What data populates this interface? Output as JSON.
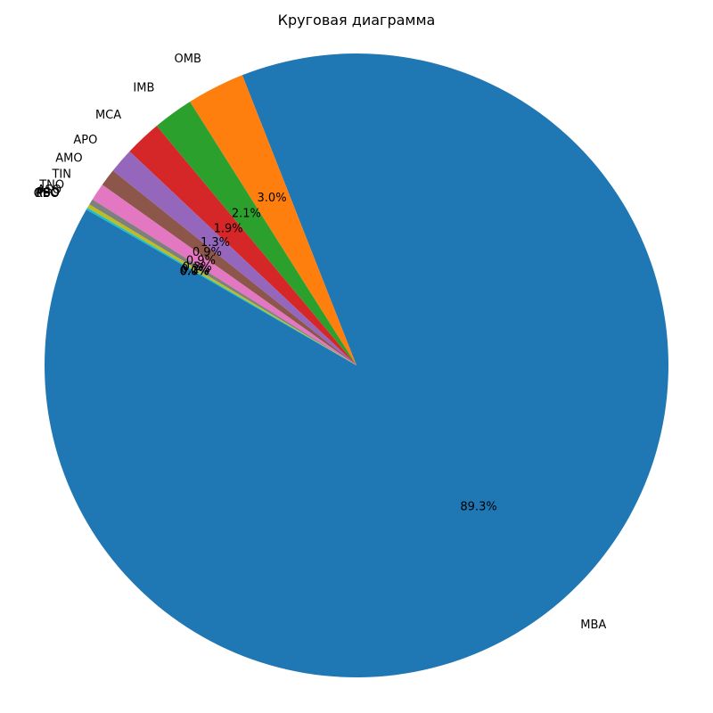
{
  "chart_data": {
    "type": "pie",
    "title": "Круговая диаграмма",
    "start_angle_deg": 150,
    "direction": "counterclockwise",
    "slices": [
      {
        "label": "MBA",
        "value": 89.3,
        "pct": "89.3%",
        "color": "#1f77b4"
      },
      {
        "label": "OMB",
        "value": 3.0,
        "pct": "3.0%",
        "color": "#ff7f0e"
      },
      {
        "label": "IMB",
        "value": 2.1,
        "pct": "2.1%",
        "color": "#2ca02c"
      },
      {
        "label": "MCA",
        "value": 1.9,
        "pct": "1.9%",
        "color": "#d62728"
      },
      {
        "label": "APO",
        "value": 1.3,
        "pct": "1.3%",
        "color": "#9467bd"
      },
      {
        "label": "AMO",
        "value": 0.9,
        "pct": "0.9%",
        "color": "#8c564b"
      },
      {
        "label": "TIN",
        "value": 0.9,
        "pct": "0.9%",
        "color": "#e377c2"
      },
      {
        "label": "TNO",
        "value": 0.3,
        "pct": "0.3%",
        "color": "#7f7f7f"
      },
      {
        "label": "ASO",
        "value": 0.2,
        "pct": "0.2%",
        "color": "#bcbd22"
      },
      {
        "label": "PSO",
        "value": 0.1,
        "pct": "0.1%",
        "color": "#17becf"
      },
      {
        "label": "GBO",
        "value": 0.0,
        "pct": "0.0%",
        "color": "#1f77b4"
      },
      {
        "label": "PPO",
        "value": 0.0,
        "pct": "0.0%",
        "color": "#ff7f0e"
      },
      {
        "label": "RSO",
        "value": 0.0,
        "pct": "0.0%",
        "color": "#2ca02c"
      }
    ]
  }
}
